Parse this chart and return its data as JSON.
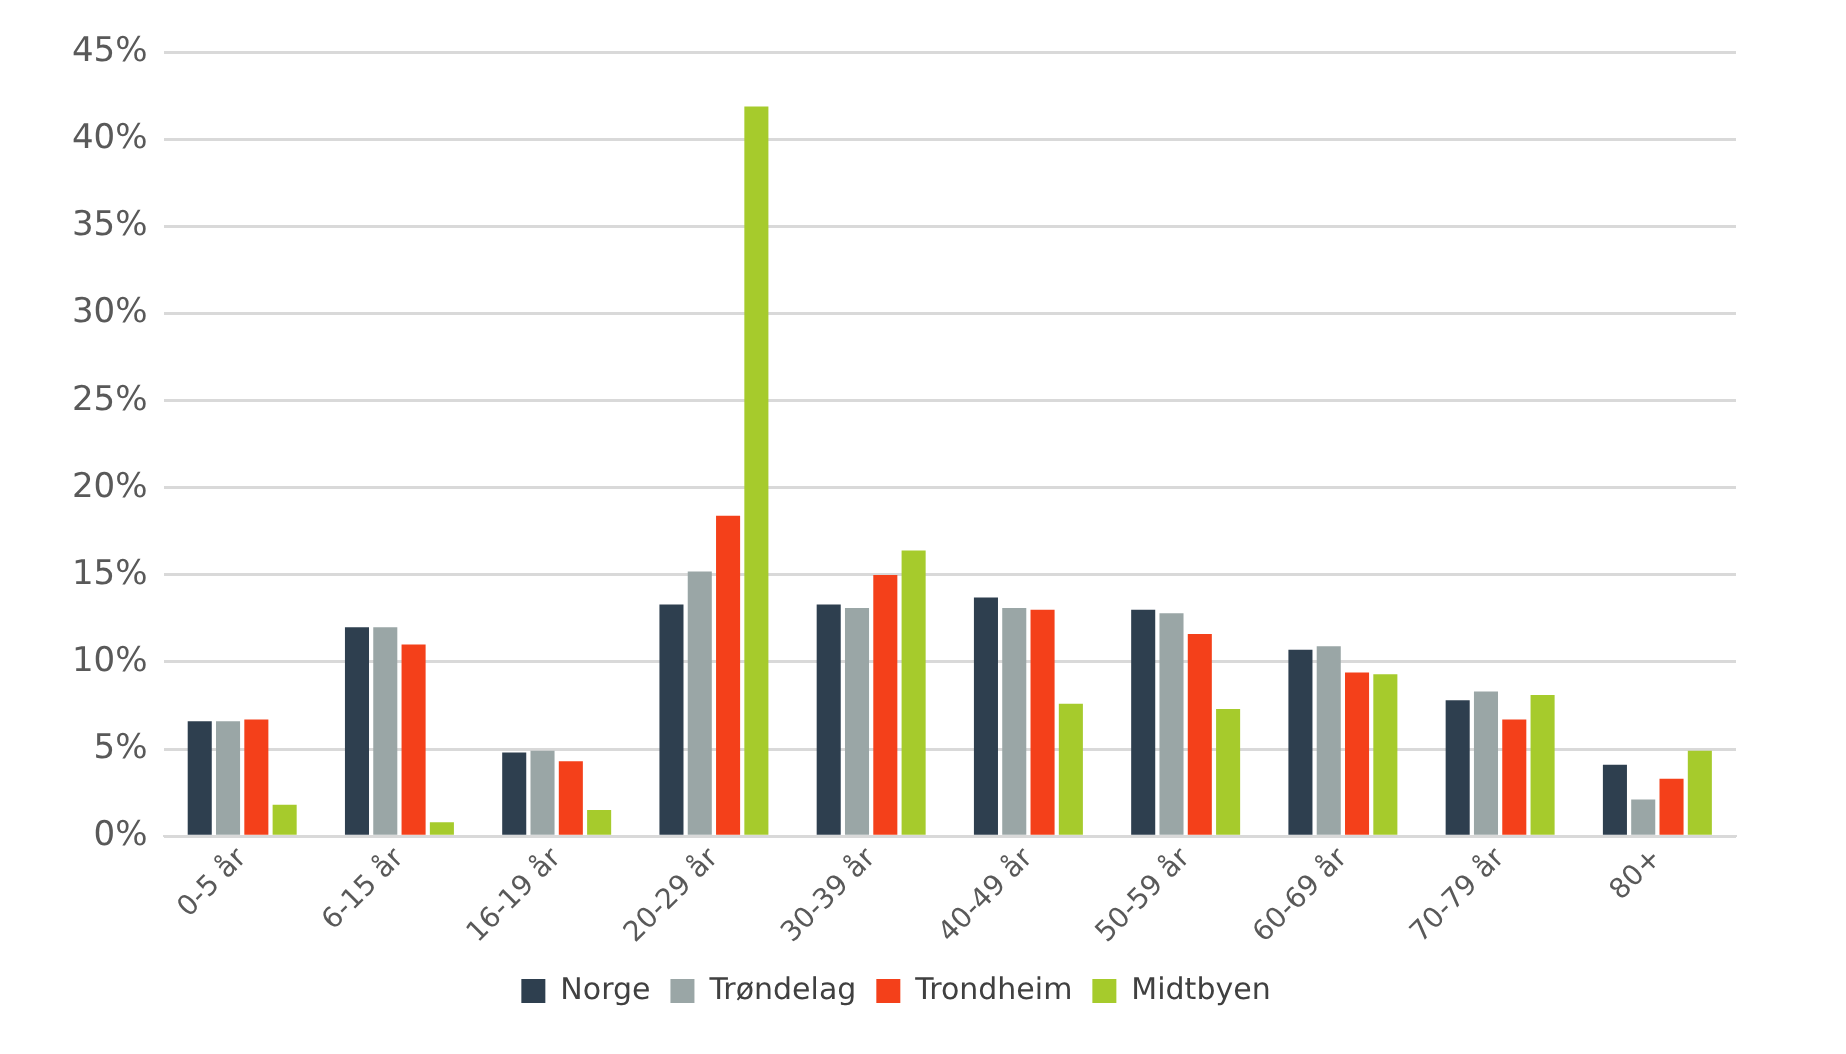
{
  "chart_data": {
    "type": "bar",
    "categories": [
      "0-5 år",
      "6-15 år",
      "16-19 år",
      "20-29 år",
      "30-39 år",
      "40-49 år",
      "50-59 år",
      "60-69 år",
      "70-79 år",
      "80+"
    ],
    "series": [
      {
        "name": "Norge",
        "color": "#2e3f4f",
        "values": [
          6.6,
          12,
          4.8,
          13.3,
          13.3,
          13.7,
          13,
          10.7,
          7.8,
          4.1
        ]
      },
      {
        "name": "Trøndelag",
        "color": "#9aa6a6",
        "values": [
          6.6,
          12,
          4.9,
          15.2,
          13.1,
          13.1,
          12.8,
          10.9,
          8.3,
          2.1
        ]
      },
      {
        "name": "Trondheim",
        "color": "#f4401a",
        "values": [
          6.7,
          11,
          4.3,
          18.4,
          15,
          13,
          11.6,
          9.4,
          6.7,
          3.3
        ]
      },
      {
        "name": "Midtbyen",
        "color": "#a6cb2c",
        "values": [
          1.8,
          0.8,
          1.5,
          41.9,
          16.4,
          7.6,
          7.3,
          9.3,
          8.1,
          4.9
        ]
      }
    ],
    "ylim": [
      0,
      45
    ],
    "yticks": [
      {
        "value": 0,
        "label": "0%"
      },
      {
        "value": 5,
        "label": "5%"
      },
      {
        "value": 10,
        "label": "10%"
      },
      {
        "value": 15,
        "label": "15%"
      },
      {
        "value": 20,
        "label": "20%"
      },
      {
        "value": 25,
        "label": "25%"
      },
      {
        "value": 30,
        "label": "30%"
      },
      {
        "value": 35,
        "label": "35%"
      },
      {
        "value": 40,
        "label": "40%"
      },
      {
        "value": 45,
        "label": "45%"
      }
    ],
    "grid": "y",
    "legend": "bottom"
  }
}
